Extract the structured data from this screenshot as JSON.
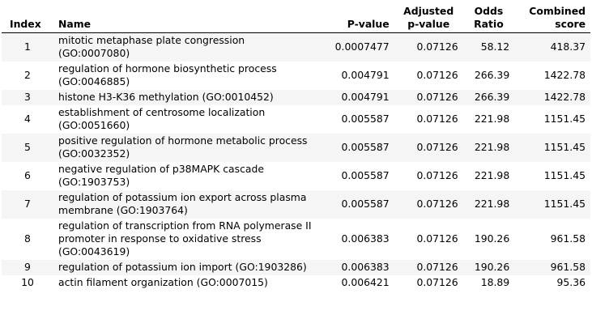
{
  "table": {
    "headers": {
      "index": "Index",
      "name": "Name",
      "pvalue": "P-value",
      "adjusted_line1": "Adjusted",
      "adjusted_line2": "p-value",
      "odds_line1": "Odds",
      "odds_line2": "Ratio",
      "combined_line1": "Combined",
      "combined_line2": "score"
    },
    "rows": [
      {
        "index": "1",
        "name": "mitotic metaphase plate congression (GO:0007080)",
        "pvalue": "0.0007477",
        "adjusted": "0.07126",
        "odds": "58.12",
        "combined": "418.37"
      },
      {
        "index": "2",
        "name": "regulation of hormone biosynthetic process (GO:0046885)",
        "pvalue": "0.004791",
        "adjusted": "0.07126",
        "odds": "266.39",
        "combined": "1422.78"
      },
      {
        "index": "3",
        "name": "histone H3-K36 methylation (GO:0010452)",
        "pvalue": "0.004791",
        "adjusted": "0.07126",
        "odds": "266.39",
        "combined": "1422.78"
      },
      {
        "index": "4",
        "name": "establishment of centrosome localization (GO:0051660)",
        "pvalue": "0.005587",
        "adjusted": "0.07126",
        "odds": "221.98",
        "combined": "1151.45"
      },
      {
        "index": "5",
        "name": "positive regulation of hormone metabolic process (GO:0032352)",
        "pvalue": "0.005587",
        "adjusted": "0.07126",
        "odds": "221.98",
        "combined": "1151.45"
      },
      {
        "index": "6",
        "name": "negative regulation of p38MAPK cascade (GO:1903753)",
        "pvalue": "0.005587",
        "adjusted": "0.07126",
        "odds": "221.98",
        "combined": "1151.45"
      },
      {
        "index": "7",
        "name": "regulation of potassium ion export across plasma membrane (GO:1903764)",
        "pvalue": "0.005587",
        "adjusted": "0.07126",
        "odds": "221.98",
        "combined": "1151.45"
      },
      {
        "index": "8",
        "name": "regulation of transcription from RNA polymerase II promoter in response to oxidative stress (GO:0043619)",
        "pvalue": "0.006383",
        "adjusted": "0.07126",
        "odds": "190.26",
        "combined": "961.58"
      },
      {
        "index": "9",
        "name": "regulation of potassium ion import (GO:1903286)",
        "pvalue": "0.006383",
        "adjusted": "0.07126",
        "odds": "190.26",
        "combined": "961.58"
      },
      {
        "index": "10",
        "name": "actin filament organization (GO:0007015)",
        "pvalue": "0.006421",
        "adjusted": "0.07126",
        "odds": "18.89",
        "combined": "95.36"
      }
    ]
  }
}
